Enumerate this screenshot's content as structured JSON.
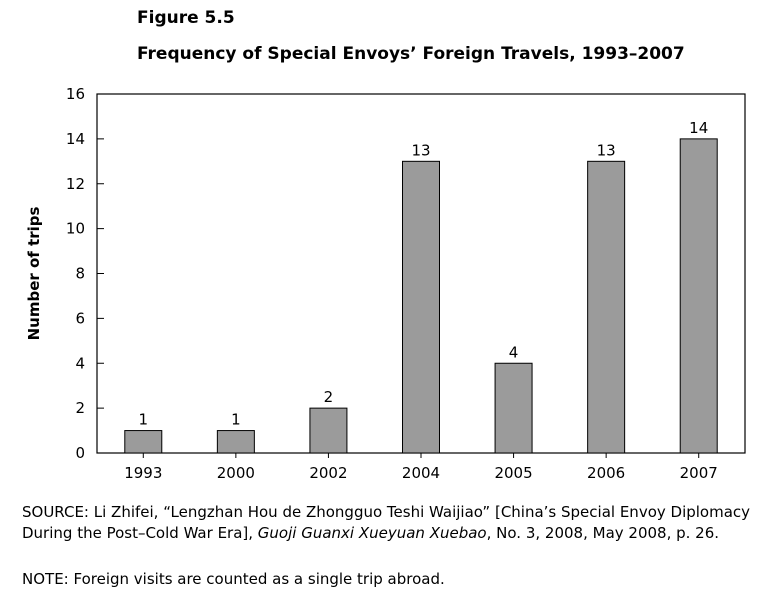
{
  "figure": {
    "label": "Figure 5.5",
    "title": "Frequency of Special Envoys’ Foreign Travels, 1993–2007"
  },
  "chart_data": {
    "type": "bar",
    "categories": [
      "1993",
      "2000",
      "2002",
      "2004",
      "2005",
      "2006",
      "2007"
    ],
    "values": [
      1,
      1,
      2,
      13,
      4,
      13,
      14
    ],
    "data_labels": [
      "1",
      "1",
      "2",
      "13",
      "4",
      "13",
      "14"
    ],
    "ylabel": "Number of trips",
    "xlabel": "",
    "ylim": [
      0,
      16
    ],
    "yticks": [
      0,
      2,
      4,
      6,
      8,
      10,
      12,
      14,
      16
    ],
    "grid": false,
    "legend": "none",
    "bar_color": "#9b9b9b",
    "bar_stroke": "#000000"
  },
  "source": {
    "prefix": "SOURCE: Li Zhifei, “Lengzhan Hou de Zhongguo Teshi Waijiao” [China’s Special Envoy Diplomacy During the Post–Cold War Era], ",
    "journal": "Guoji Guanxi Xueyuan Xuebao",
    "suffix": ", No. 3, 2008, May 2008, p. 26."
  },
  "note": "NOTE: Foreign visits are counted as a single trip abroad."
}
